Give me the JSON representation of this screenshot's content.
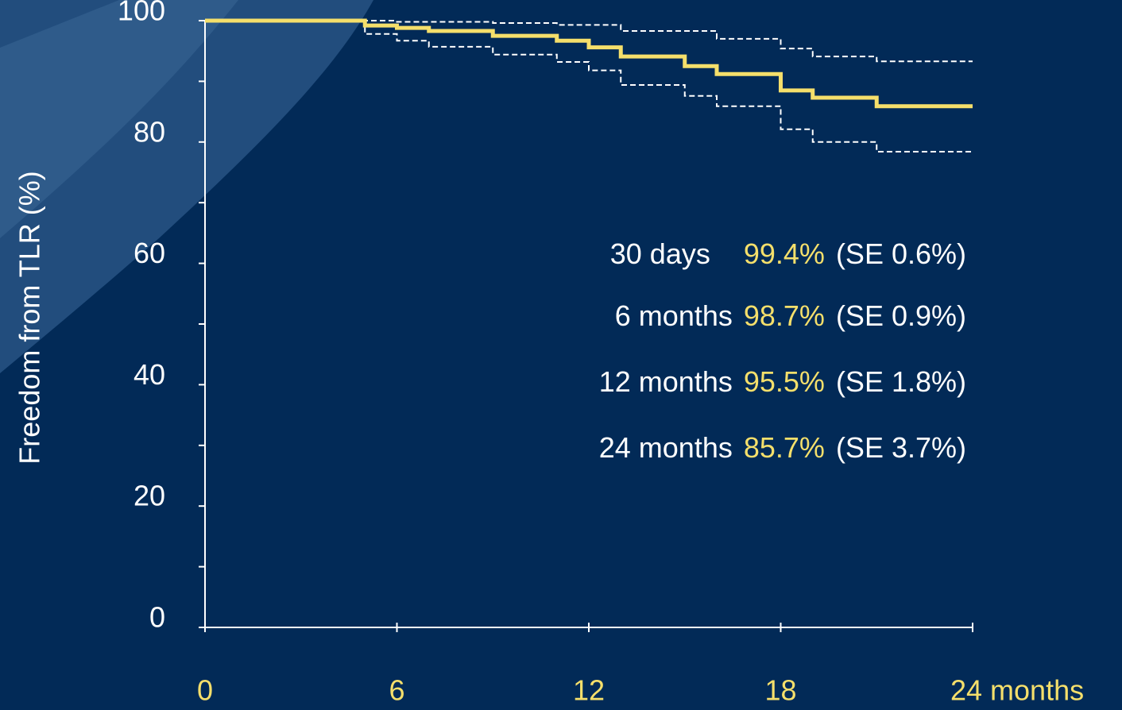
{
  "chart_data": {
    "type": "step",
    "y_label": "Freedom from TLR (%)",
    "x": [
      0,
      5,
      6,
      7,
      9,
      11,
      12,
      13,
      15,
      16,
      18,
      19,
      21,
      24
    ],
    "series": [
      {
        "color": "#f5df6b",
        "style": "solid",
        "values": [
          100,
          99.2,
          98.8,
          98.3,
          97.5,
          96.7,
          95.6,
          94.1,
          92.5,
          91.2,
          88.5,
          87.3,
          85.9,
          85.9
        ]
      },
      {
        "color": "#ffffff",
        "style": "dashed",
        "values": [
          100,
          100,
          99.8,
          99.8,
          99.6,
          99.3,
          99.3,
          98.3,
          98.3,
          97,
          95.4,
          94.1,
          93.3,
          93.3
        ]
      },
      {
        "color": "#ffffff",
        "style": "dashed",
        "values": [
          100,
          97.8,
          96.7,
          95.7,
          94.4,
          93.2,
          91.8,
          89.4,
          87.6,
          85.9,
          82.1,
          80,
          78.4,
          78.4
        ]
      }
    ],
    "xlim": [
      0,
      24
    ],
    "ylim": [
      0,
      100
    ],
    "xticks": [
      0,
      6,
      12,
      18,
      {
        "value": 24,
        "label": "24 months"
      }
    ],
    "yticks": [
      0,
      20,
      40,
      60,
      80,
      100
    ],
    "yminorticks": [
      10,
      30,
      50,
      70,
      90
    ],
    "annotations": [
      {
        "label": "30 days",
        "value": "99.4%",
        "se": "(SE 0.6%)"
      },
      {
        "label": "6 months",
        "value": "98.7%",
        "se": "(SE 0.9%)"
      },
      {
        "label": "12 months",
        "value": "95.5%",
        "se": "(SE 1.8%)"
      },
      {
        "label": "24 months",
        "value": "85.7%",
        "se": "(SE 3.7%)"
      }
    ]
  }
}
